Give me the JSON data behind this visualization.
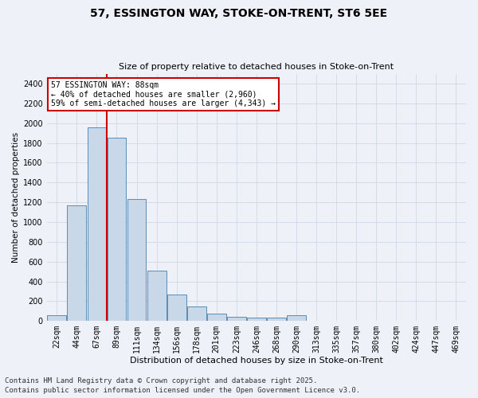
{
  "title1": "57, ESSINGTON WAY, STOKE-ON-TRENT, ST6 5EE",
  "title2": "Size of property relative to detached houses in Stoke-on-Trent",
  "xlabel": "Distribution of detached houses by size in Stoke-on-Trent",
  "ylabel": "Number of detached properties",
  "categories": [
    "22sqm",
    "44sqm",
    "67sqm",
    "89sqm",
    "111sqm",
    "134sqm",
    "156sqm",
    "178sqm",
    "201sqm",
    "223sqm",
    "246sqm",
    "268sqm",
    "290sqm",
    "313sqm",
    "335sqm",
    "357sqm",
    "380sqm",
    "402sqm",
    "424sqm",
    "447sqm",
    "469sqm"
  ],
  "values": [
    60,
    1170,
    1960,
    1850,
    1230,
    510,
    265,
    150,
    75,
    40,
    35,
    30,
    55,
    0,
    0,
    0,
    0,
    0,
    0,
    0,
    0
  ],
  "bar_color": "#c8d8e8",
  "bar_edge_color": "#5b8db8",
  "vline_x_index": 2,
  "vline_x_offset": 0.5,
  "marker_label_line1": "57 ESSINGTON WAY: 88sqm",
  "marker_label_line2": "← 40% of detached houses are smaller (2,960)",
  "marker_label_line3": "59% of semi-detached houses are larger (4,343) →",
  "annotation_box_color": "#ffffff",
  "annotation_box_edge": "#cc0000",
  "vline_color": "#cc0000",
  "grid_color": "#d0d8e8",
  "background_color": "#eef2f8",
  "footer1": "Contains HM Land Registry data © Crown copyright and database right 2025.",
  "footer2": "Contains public sector information licensed under the Open Government Licence v3.0.",
  "ylim": [
    0,
    2500
  ],
  "yticks": [
    0,
    200,
    400,
    600,
    800,
    1000,
    1200,
    1400,
    1600,
    1800,
    2000,
    2200,
    2400
  ],
  "title1_fontsize": 10,
  "title2_fontsize": 8,
  "xlabel_fontsize": 8,
  "ylabel_fontsize": 7.5,
  "tick_fontsize": 7,
  "footer_fontsize": 6.5,
  "annot_fontsize": 7
}
